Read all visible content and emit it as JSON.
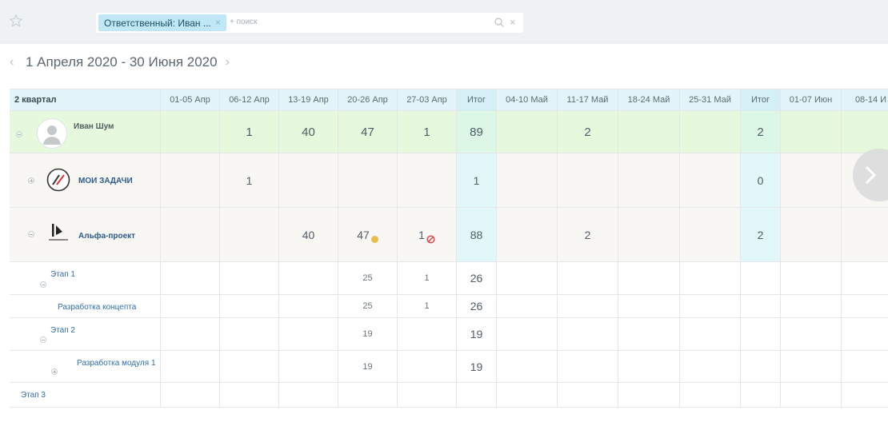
{
  "filter": {
    "chip_label": "Ответственный: Иван ...",
    "chip_remove": "×",
    "add_search": "+ поиск",
    "clear": "×"
  },
  "period": {
    "prev": "‹",
    "label": "1 Апреля 2020 - 30 Июня 2020",
    "next": "›"
  },
  "table": {
    "header": [
      "2 квартал",
      "01-05 Апр",
      "06-12 Апр",
      "13-19 Апр",
      "20-26 Апр",
      "27-03 Апр",
      "Итог",
      "04-10 Май",
      "11-17 Май",
      "18-24 Май",
      "25-31 Май",
      "Итог",
      "01-07 Июн",
      "08-14 И"
    ],
    "rows": [
      {
        "label": "Иван Шум",
        "values": [
          "",
          "1",
          "40",
          "47",
          "1",
          "89",
          "",
          "2",
          "",
          "",
          "2",
          "",
          ""
        ]
      },
      {
        "label": "МОИ ЗАДАЧИ",
        "values": [
          "",
          "1",
          "",
          "",
          "",
          "1",
          "",
          "",
          "",
          "",
          "0",
          "",
          ""
        ]
      },
      {
        "label": "Альфа-проект",
        "values": [
          "",
          "",
          "40",
          "47",
          "1",
          "88",
          "",
          "2",
          "",
          "",
          "2",
          "",
          ""
        ]
      },
      {
        "label": "Этап 1",
        "values": [
          "",
          "",
          "",
          "25",
          "1",
          "26",
          "",
          "",
          "",
          "",
          "",
          "",
          ""
        ]
      },
      {
        "label": "Разработка концепта",
        "values": [
          "",
          "",
          "",
          "25",
          "1",
          "26",
          "",
          "",
          "",
          "",
          "",
          "",
          ""
        ]
      },
      {
        "label": "Этап 2",
        "values": [
          "",
          "",
          "",
          "19",
          "",
          "19",
          "",
          "",
          "",
          "",
          "",
          "",
          ""
        ]
      },
      {
        "label": "Разработка модуля 1",
        "values": [
          "",
          "",
          "",
          "19",
          "",
          "19",
          "",
          "",
          "",
          "",
          "",
          "",
          ""
        ]
      },
      {
        "label": "Этап 3",
        "values": [
          "",
          "",
          "",
          "",
          "",
          "",
          "",
          "",
          "",
          "",
          "",
          "",
          ""
        ]
      }
    ]
  },
  "colors": {
    "header_bg": "#e3f5fb",
    "person_row_bg": "#e6f9dc",
    "project_row_bg": "#f8f7f4",
    "total_col_bg": "#e2f7f8",
    "warning_dot": "#e9bd4c",
    "blocked_icon": "#d94040"
  },
  "icons": [
    "star-icon",
    "search-icon",
    "close-icon",
    "chevron-left-icon",
    "chevron-right-icon",
    "avatar",
    "my-tasks-icon",
    "project-logo-icon",
    "collapse-icon",
    "expand-icon",
    "warning-dot-icon",
    "blocked-icon"
  ]
}
